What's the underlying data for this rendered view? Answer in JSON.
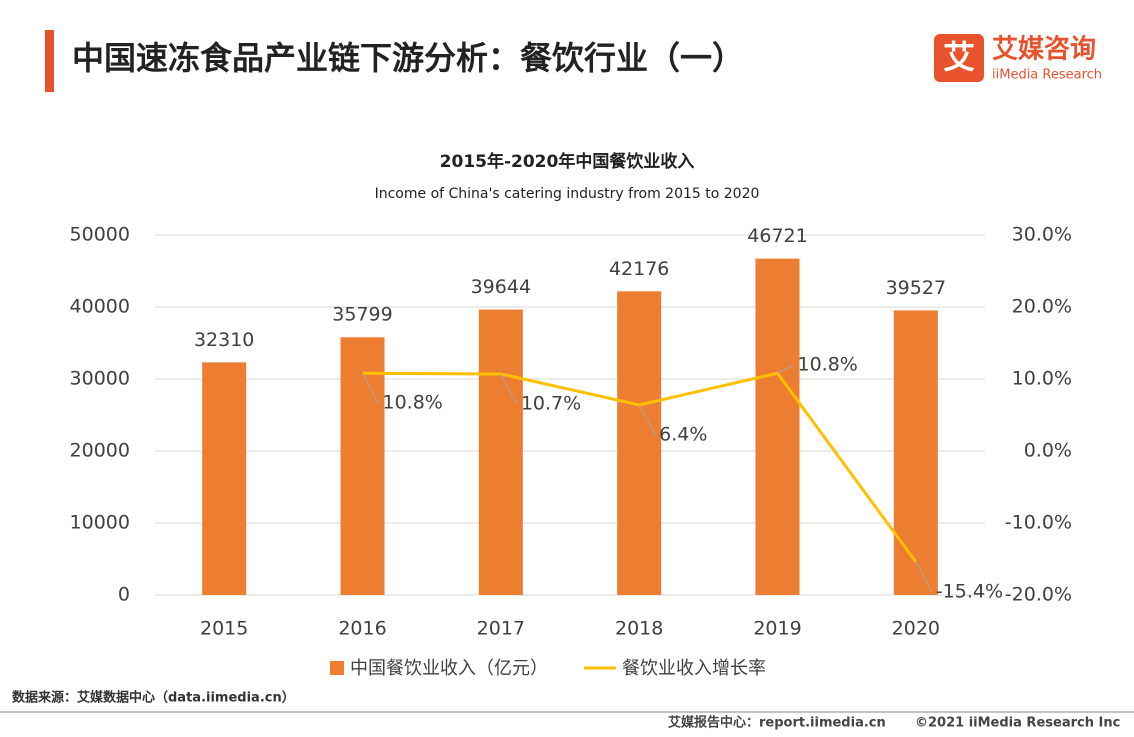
{
  "header": {
    "title": "中国速冻食品产业链下游分析：餐饮行业（一）",
    "logo_cn": "艾媒咨询",
    "logo_en": "iiMedia Research"
  },
  "chart_data": {
    "type": "bar",
    "title": "2015年-2020年中国餐饮业收入",
    "subtitle": "Income of China's catering industry from 2015 to 2020",
    "categories": [
      "2015",
      "2016",
      "2017",
      "2018",
      "2019",
      "2020"
    ],
    "series": [
      {
        "name": "中国餐饮业收入（亿元）",
        "type": "bar",
        "color": "#ed7d31",
        "values": [
          32310,
          35799,
          39644,
          42176,
          46721,
          39527
        ]
      },
      {
        "name": "餐饮业收入增长率",
        "type": "line",
        "axis": "y2",
        "color": "#ffc000",
        "values": [
          null,
          10.8,
          10.7,
          6.4,
          10.8,
          -15.4
        ],
        "value_labels": [
          null,
          "10.8%",
          "10.7%",
          "6.4%",
          "10.8%",
          "-15.4%"
        ]
      }
    ],
    "ylim": [
      0,
      50000
    ],
    "yticks": [
      0,
      10000,
      20000,
      30000,
      40000,
      50000
    ],
    "y2lim": [
      -20,
      30
    ],
    "y2ticks": [
      {
        "value": -20,
        "label": "-20.0%"
      },
      {
        "value": -10,
        "label": "-10.0%"
      },
      {
        "value": 0,
        "label": "0.0%"
      },
      {
        "value": 10,
        "label": "10.0%"
      },
      {
        "value": 20,
        "label": "20.0%"
      },
      {
        "value": 30,
        "label": "30.0%"
      }
    ],
    "legend": "bottom"
  },
  "footer": {
    "source": "数据来源：艾媒数据中心（data.iimedia.cn）",
    "site": "艾媒报告中心：report.iimedia.cn",
    "copyright": "©2021  iiMedia Research  Inc"
  }
}
